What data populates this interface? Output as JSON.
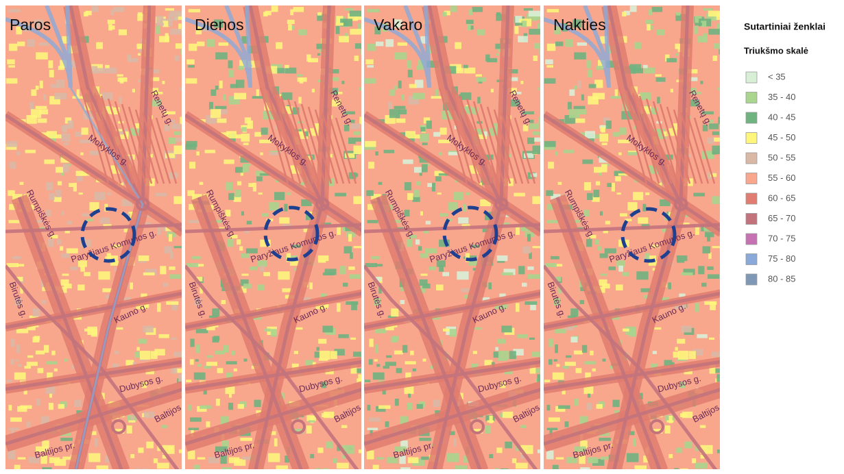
{
  "panels": [
    {
      "title": "Paros"
    },
    {
      "title": "Dienos"
    },
    {
      "title": "Vakaro"
    },
    {
      "title": "Nakties"
    }
  ],
  "streets": [
    "Renetų g.",
    "Mokyklos g.",
    "Rumpiškės g.",
    "Paryžiaus Komunos g.",
    "Birutės g.",
    "Kauno g.",
    "Dubysos g.",
    "Baltijos pr.",
    "Baltijos pr."
  ],
  "legend": {
    "title": "Sutartiniai ženklai",
    "subtitle": "Triukšmo skalė",
    "items": [
      {
        "label": "< 35",
        "color": "#d8efd6"
      },
      {
        "label": "35 - 40",
        "color": "#a9d58e"
      },
      {
        "label": "40 - 45",
        "color": "#6fb380"
      },
      {
        "label": "45 - 50",
        "color": "#fdf57c"
      },
      {
        "label": "50 - 55",
        "color": "#d9b9a5"
      },
      {
        "label": "55 - 60",
        "color": "#f8a78d"
      },
      {
        "label": "60 - 65",
        "color": "#e07c70"
      },
      {
        "label": "65 - 70",
        "color": "#c2737c"
      },
      {
        "label": "70 - 75",
        "color": "#c672b2"
      },
      {
        "label": "75 - 80",
        "color": "#89aad8"
      },
      {
        "label": "80 - 85",
        "color": "#7f98b5"
      }
    ]
  }
}
